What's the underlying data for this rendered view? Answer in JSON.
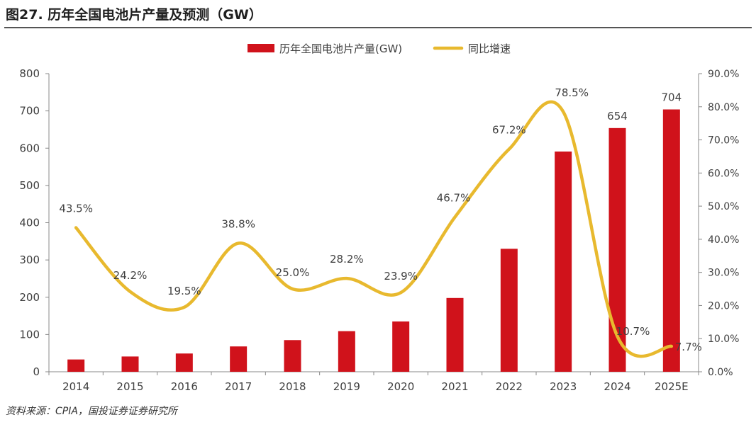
{
  "figure_title": "图27. 历年全国电池片产量及预测（GW）",
  "source_note": "资料来源：CPIA，国投证券证券研究所",
  "colors": {
    "bar": "#d0121b",
    "line": "#e8b92e",
    "axis": "#888888",
    "text": "#404040"
  },
  "chart_data": {
    "type": "bar",
    "categories": [
      "2014",
      "2015",
      "2016",
      "2017",
      "2018",
      "2019",
      "2020",
      "2021",
      "2022",
      "2023",
      "2024",
      "2025E"
    ],
    "series": [
      {
        "name": "历年全国电池片产量(GW)",
        "type": "bar",
        "axis": "left",
        "values": [
          33,
          41,
          49,
          68,
          85,
          109,
          135,
          198,
          330,
          591,
          654,
          704
        ],
        "data_labels": [
          "",
          "",
          "",
          "",
          "",
          "",
          "",
          "",
          "",
          "",
          "654",
          "704"
        ]
      },
      {
        "name": "同比增速",
        "type": "line",
        "axis": "right",
        "values": [
          43.5,
          24.2,
          19.5,
          38.8,
          25.0,
          28.2,
          23.9,
          46.7,
          67.2,
          78.5,
          10.7,
          7.7
        ],
        "data_labels": [
          "43.5%",
          "24.2%",
          "19.5%",
          "38.8%",
          "25.0%",
          "28.2%",
          "23.9%",
          "46.7%",
          "67.2%",
          "78.5%",
          "10.7%",
          "7.7%"
        ]
      }
    ],
    "y_left": {
      "ylim": [
        0,
        800
      ],
      "ticks": [
        "0",
        "100",
        "200",
        "300",
        "400",
        "500",
        "600",
        "700",
        "800"
      ]
    },
    "y_right": {
      "ylim": [
        0,
        90
      ],
      "ticks": [
        "0.0%",
        "10.0%",
        "20.0%",
        "30.0%",
        "40.0%",
        "50.0%",
        "60.0%",
        "70.0%",
        "80.0%",
        "90.0%"
      ]
    },
    "legend_position": "top-center",
    "grid": false
  }
}
